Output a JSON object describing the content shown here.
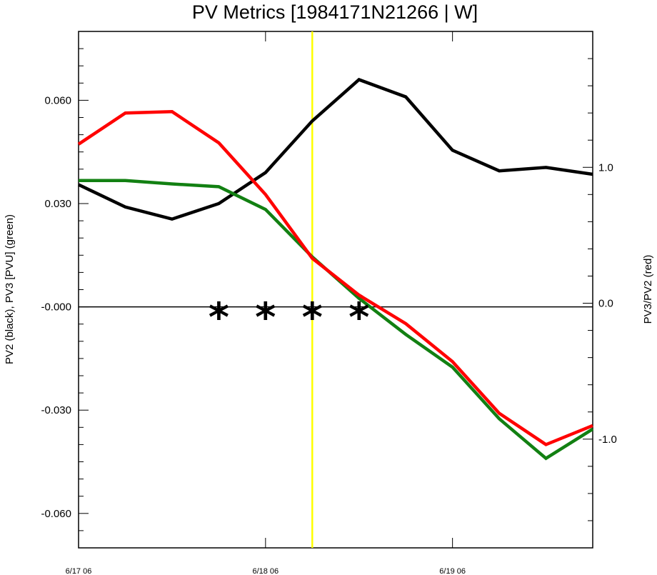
{
  "chart_data": {
    "type": "line",
    "title": "PV Metrics [1984171N21266 | W]",
    "ylabel_left": "PV2 (black), PV3 [PVU] (green)",
    "ylabel_right": "PV3/PV2 (red)",
    "xlabel": "",
    "x_tick_labels": [
      "6/17 06",
      "6/18 06",
      "6/19 06"
    ],
    "x_tick_positions": [
      0,
      24,
      48
    ],
    "x_range": [
      0,
      66
    ],
    "ylim_left": [
      -0.07,
      0.08
    ],
    "ylim_right": [
      -1.8,
      2.0
    ],
    "left_tick_values": [
      0.06,
      0.03,
      0.0,
      -0.03,
      -0.06
    ],
    "left_tick_labels": [
      "0.060",
      "0.030",
      "-0.000",
      "-0.030",
      "-0.060"
    ],
    "right_tick_values": [
      1.0,
      0.0,
      -1.0
    ],
    "right_tick_labels": [
      "1.0",
      "0.0",
      "-1.0"
    ],
    "x": [
      0,
      6,
      12,
      18,
      24,
      30,
      36,
      42,
      48,
      54,
      60,
      66
    ],
    "series": [
      {
        "name": "PV2",
        "color": "#000000",
        "axis": "left",
        "values": [
          0.0355,
          0.029,
          0.0255,
          0.03,
          0.039,
          0.054,
          0.066,
          0.061,
          0.0455,
          0.0395,
          0.0405,
          0.0385
        ]
      },
      {
        "name": "PV3",
        "color": "#128012",
        "axis": "left",
        "values": [
          0.0367,
          0.0367,
          0.0357,
          0.0349,
          0.0283,
          0.0145,
          0.0025,
          -0.008,
          -0.0175,
          -0.0325,
          -0.044,
          -0.0355
        ]
      },
      {
        "name": "PV3/PV2",
        "color": "#ff0000",
        "axis": "right",
        "values": [
          1.17,
          1.4,
          1.41,
          1.18,
          0.8,
          0.33,
          0.06,
          -0.15,
          -0.43,
          -0.81,
          -1.04,
          -0.9
        ]
      }
    ],
    "zero_line": 0.0,
    "vertical_marker": {
      "x": 30,
      "color": "#ffff00"
    },
    "star_markers": {
      "symbol": "*",
      "x": [
        18,
        24,
        30,
        36
      ],
      "y": 0.0
    },
    "grid": false,
    "legend": "none"
  }
}
